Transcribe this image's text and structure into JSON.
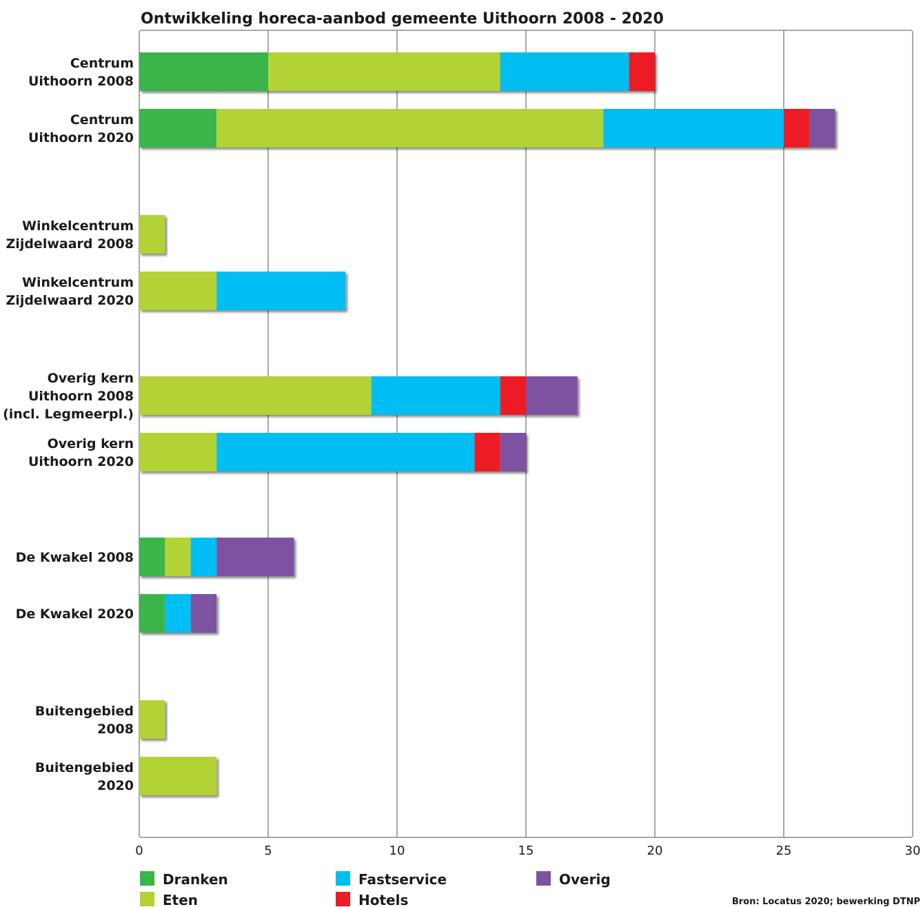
{
  "chart_data": {
    "type": "bar",
    "orientation": "horizontal",
    "stacked": true,
    "title": "Ontwikkeling horeca-aanbod gemeente Uithoorn 2008 - 2020",
    "source": "Bron: Locatus 2020; bewerking DTNP",
    "xlim": [
      0,
      30
    ],
    "xticks": [
      0,
      5,
      10,
      15,
      20,
      25,
      30
    ],
    "grid": true,
    "legend_position": "bottom",
    "categories": [
      [
        "Centrum",
        "Uithoorn 2008"
      ],
      [
        "Centrum",
        "Uithoorn 2020"
      ],
      [
        "Winkelcentrum",
        "Zijdelwaard 2008"
      ],
      [
        "Winkelcentrum",
        "Zijdelwaard 2020"
      ],
      [
        "Overig kern",
        "Uithoorn 2008",
        "(incl. Legmeerpl.)"
      ],
      [
        "Overig kern",
        "Uithoorn 2020"
      ],
      [
        "De Kwakel 2008"
      ],
      [
        "De Kwakel 2020"
      ],
      [
        "Buitengebied",
        "2008"
      ],
      [
        "Buitengebied",
        "2020"
      ]
    ],
    "series": [
      {
        "name": "Dranken",
        "color": "#3bb44a",
        "values": [
          5,
          3,
          0,
          0,
          0,
          0,
          1,
          1,
          0,
          0
        ]
      },
      {
        "name": "Eten",
        "color": "#b2d235",
        "values": [
          9,
          15,
          1,
          3,
          9,
          3,
          1,
          0,
          1,
          3
        ]
      },
      {
        "name": "Fastservice",
        "color": "#00bdf2",
        "values": [
          5,
          7,
          0,
          5,
          5,
          10,
          1,
          1,
          0,
          0
        ]
      },
      {
        "name": "Hotels",
        "color": "#ed1c24",
        "values": [
          1,
          1,
          0,
          0,
          1,
          1,
          0,
          0,
          0,
          0
        ]
      },
      {
        "name": "Overig",
        "color": "#7d52a0",
        "values": [
          0,
          1,
          0,
          0,
          2,
          1,
          3,
          1,
          0,
          0
        ]
      }
    ]
  }
}
